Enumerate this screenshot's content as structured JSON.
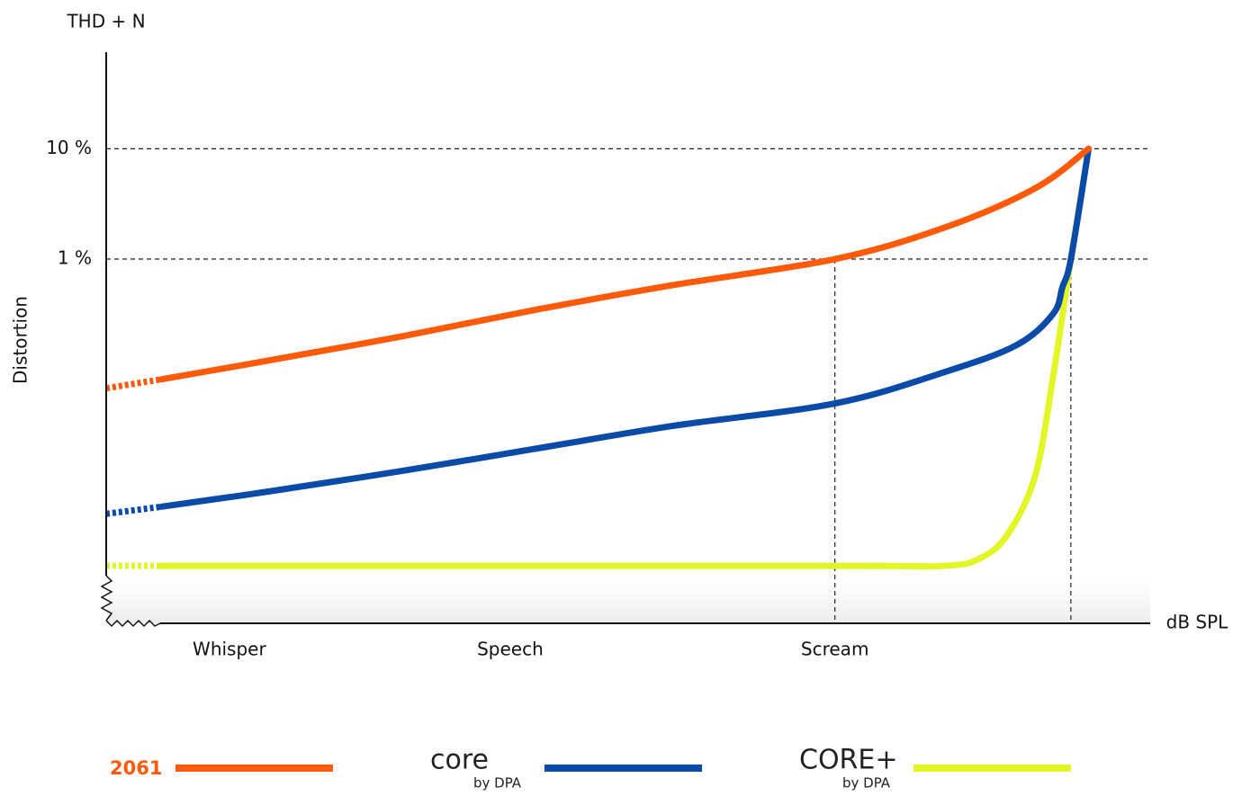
{
  "chart_data": {
    "type": "line",
    "y_title": "THD + N",
    "y_label": "Distortion",
    "x_label": "dB SPL",
    "log_y": true,
    "grid": true,
    "xlim": [
      0,
      100
    ],
    "xticks": [
      {
        "value": 11.8,
        "label": "Whisper"
      },
      {
        "value": 38.7,
        "label": "Speech"
      },
      {
        "value": 69.8,
        "label": "Scream"
      }
    ],
    "ylim": [
      0.0005,
      75
    ],
    "yticks": [
      {
        "value": 1,
        "label": "1 %"
      },
      {
        "value": 10,
        "label": "10 %"
      }
    ],
    "reference_x": [
      69.8,
      92.4
    ],
    "series": [
      {
        "name": "2061",
        "color": "#ff5a0a",
        "x": [
          0,
          5.3,
          15.6,
          28.4,
          41.4,
          54.3,
          69.8,
          80.3,
          89.0,
          94.1
        ],
        "values": [
          0.0675,
          0.0814,
          0.1206,
          0.2,
          0.351,
          0.581,
          1,
          1.93,
          4.39,
          10
        ]
      },
      {
        "name": "core",
        "sublabel": "by DPA",
        "color": "#0a4aa8",
        "x": [
          0,
          5.3,
          15.6,
          28.4,
          41.4,
          54.3,
          69.8,
          80.3,
          87.2,
          90.7,
          91.6,
          92.4,
          94.1
        ],
        "values": [
          0.00491,
          0.0057,
          0.00784,
          0.01205,
          0.0193,
          0.0308,
          0.0491,
          0.0946,
          0.166,
          0.319,
          0.56,
          1,
          10
        ]
      },
      {
        "name": "CORE+",
        "sublabel": "by DPA",
        "color": "#e2f526",
        "x": [
          0,
          5.3,
          69.8,
          80.3,
          83.8,
          86.4,
          89.0,
          90.7,
          92.4,
          94.1
        ],
        "values": [
          0.00166,
          0.00166,
          0.00166,
          0.00166,
          0.00196,
          0.00325,
          0.011,
          0.0861,
          1,
          10
        ]
      }
    ]
  }
}
